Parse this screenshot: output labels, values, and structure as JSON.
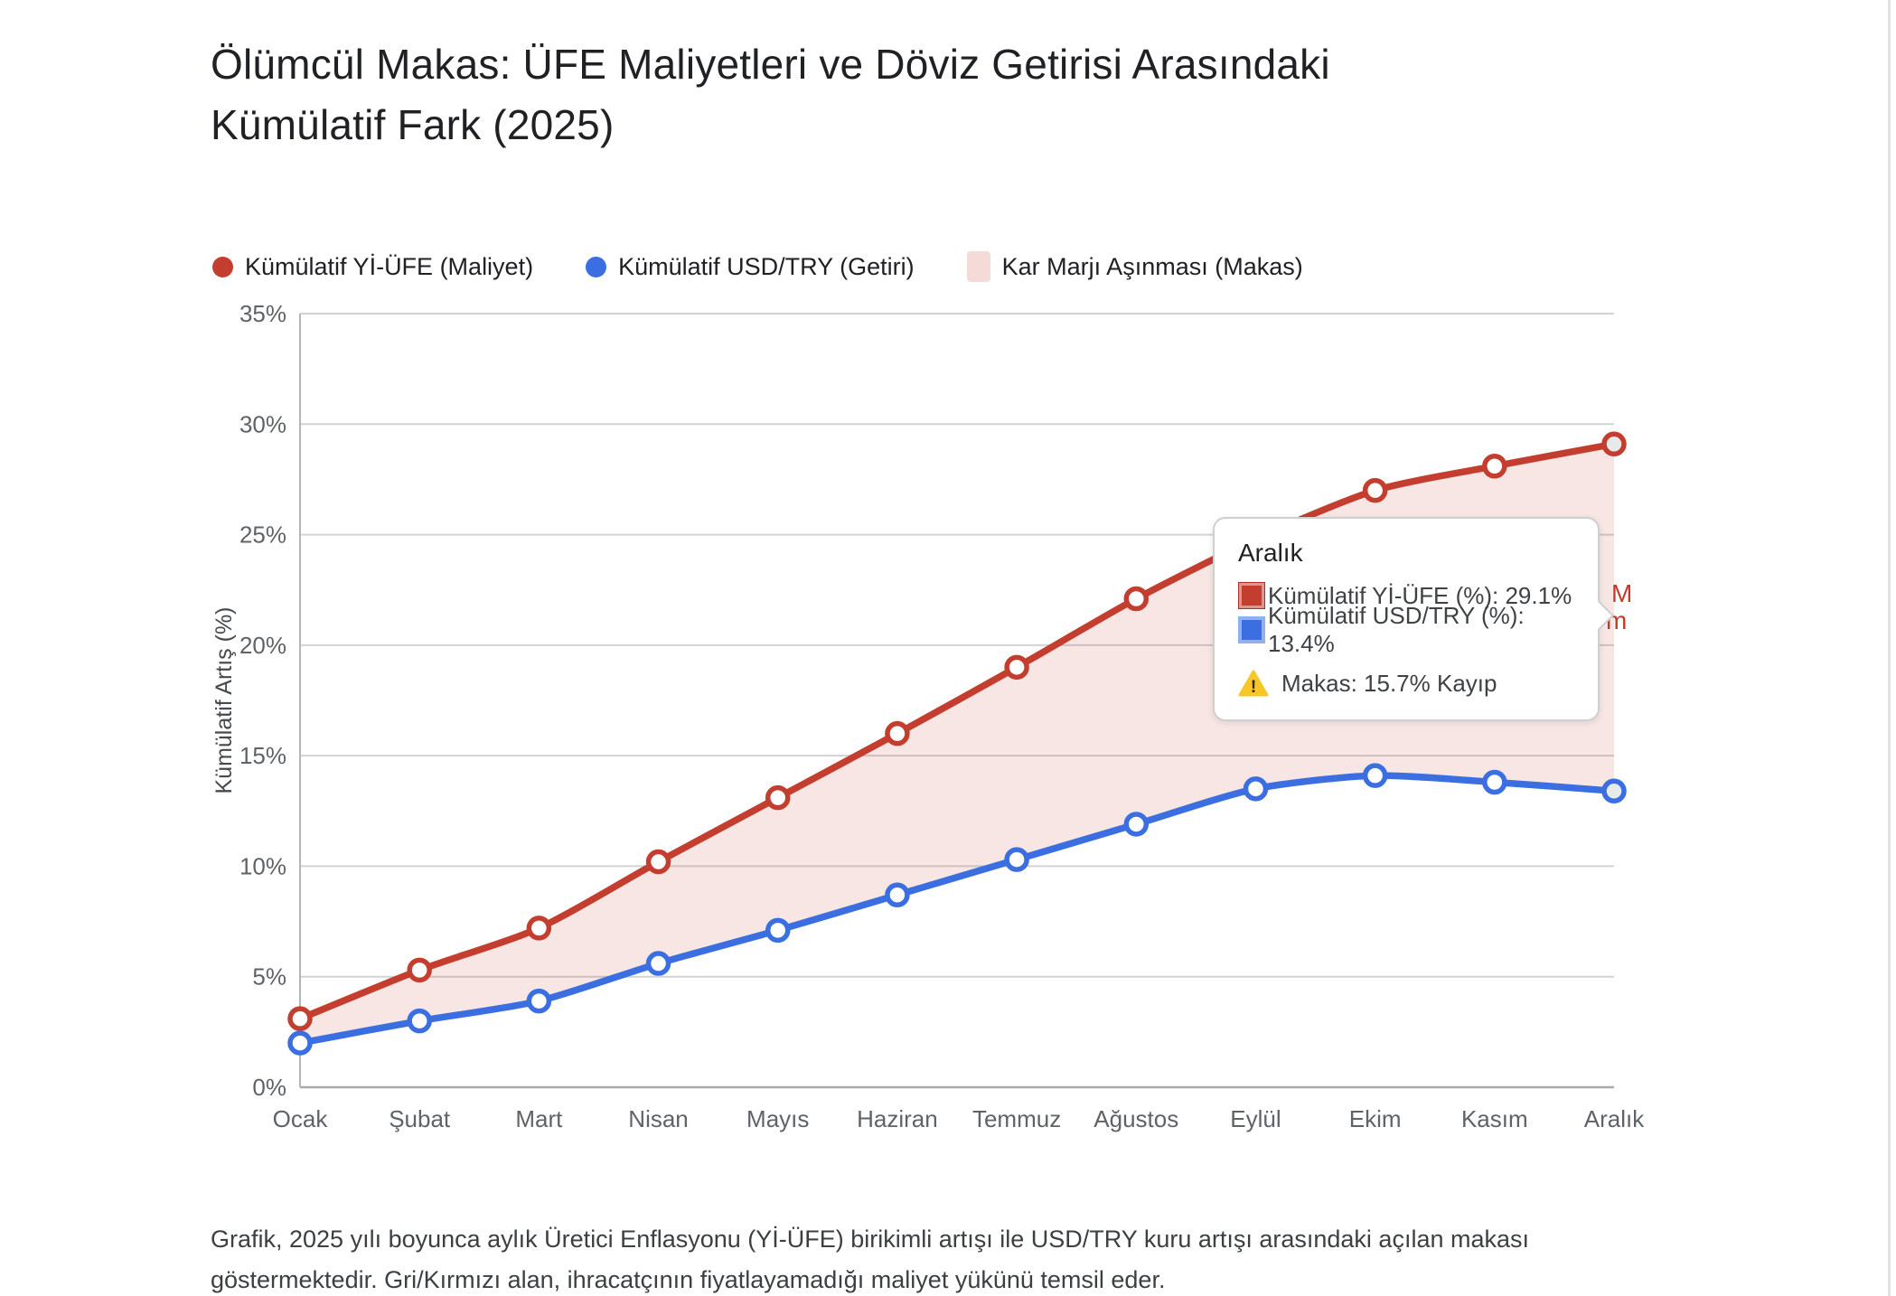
{
  "header": {
    "title_line1": "Ölümcül Makas: ÜFE Maliyetleri ve Döviz Getirisi Arasındaki",
    "title_line2": "Kümülatif Fark (2025)"
  },
  "legend": {
    "items": [
      {
        "label": "Kümülatif Yİ-ÜFE (Maliyet)",
        "color": "#c43e30",
        "shape": "circle"
      },
      {
        "label": "Kümülatif USD/TRY (Getiri)",
        "color": "#3b6fe1",
        "shape": "circle"
      },
      {
        "label": "Kar Marjı Aşınması (Makas)",
        "color": "#f5dbd8",
        "shape": "square"
      }
    ]
  },
  "chart_data": {
    "type": "line",
    "categories": [
      "Ocak",
      "Şubat",
      "Mart",
      "Nisan",
      "Mayıs",
      "Haziran",
      "Temmuz",
      "Ağustos",
      "Eylül",
      "Ekim",
      "Kasım",
      "Aralık"
    ],
    "series": [
      {
        "name": "Kümülatif Yİ-ÜFE (Maliyet)",
        "color": "#c43e30",
        "values": [
          3.1,
          5.3,
          7.2,
          10.2,
          13.1,
          16.0,
          19.0,
          22.1,
          24.8,
          27.0,
          28.1,
          29.1
        ]
      },
      {
        "name": "Kümülatif USD/TRY (Getiri)",
        "color": "#3b6fe1",
        "values": [
          2.0,
          3.0,
          3.9,
          5.6,
          7.1,
          8.7,
          10.3,
          11.9,
          13.5,
          14.1,
          13.8,
          13.4
        ]
      }
    ],
    "area_label": "Kar Marjı Aşınması (Makas)",
    "area_fill": "rgba(197,62,49,0.13)",
    "title": "Ölümcül Makas: ÜFE Maliyetleri ve Döviz Getirisi Arasındaki Kümülatif Fark (2025)",
    "xlabel": "",
    "ylabel": "Kümülatif Artış (%)",
    "ylim": [
      0,
      35
    ],
    "y_ticks": [
      "35%",
      "30%",
      "25%",
      "20%",
      "15%",
      "10%",
      "5%",
      "0%"
    ],
    "grid": true,
    "legend_position": "top",
    "highlighted_point": "Aralık"
  },
  "tooltip": {
    "title": "Aralık",
    "rows": [
      {
        "label": "Kümülatif Yİ-ÜFE (%): 29.1%",
        "color": "#c43e30"
      },
      {
        "label": "Kümülatif USD/TRY (%): 13.4%",
        "color": "#3b6fe1"
      }
    ],
    "warning": "Makas: 15.7% Kayıp"
  },
  "annotation": {
    "visible_fragment_line1": "M",
    "visible_fragment_line2": "m"
  },
  "footer": {
    "text": "Grafik, 2025 yılı boyunca aylık Üretici Enflasyonu (Yİ-ÜFE) birikimli artışı ile USD/TRY kuru artışı arasındaki açılan makası göstermektedir. Gri/Kırmızı alan, ihracatçının fiyatlayamadığı maliyet yükünü temsil eder."
  },
  "colors": {
    "red_series": "#c43e30",
    "blue_series": "#3b6fe1",
    "area_pink": "rgba(197,62,49,0.13)",
    "grid_line": "#d2d3d5",
    "axis_line": "#b3b5b8",
    "bottom_axis": "#a8aaad",
    "tick_text": "#5f6368",
    "title_text": "#202124",
    "footer_text": "#3c4043",
    "warning_yellow": "#f6c726"
  }
}
